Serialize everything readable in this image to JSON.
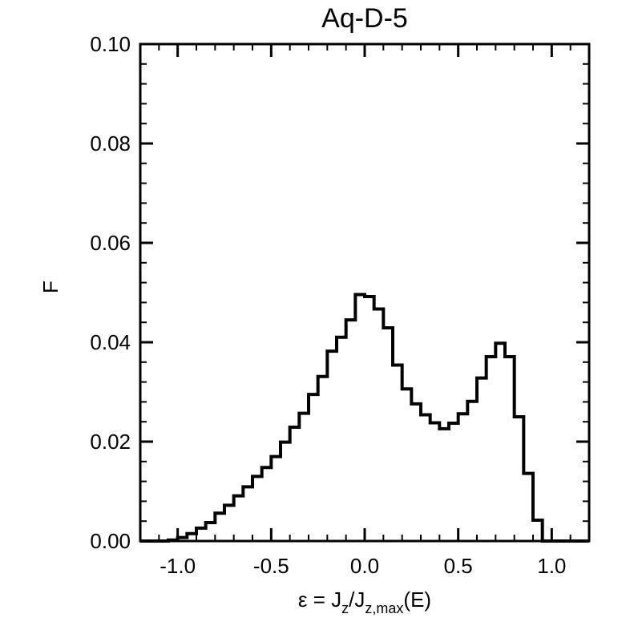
{
  "chart_data": {
    "type": "line",
    "title": "Aq-D-5",
    "ylabel": "F",
    "xlabel": {
      "prefix": "ε =  J",
      "sub1": "z",
      "mid": "/J",
      "sub2": "z,max",
      "suffix": "(E)"
    },
    "xlim": [
      -1.2,
      1.2
    ],
    "ylim": [
      0.0,
      0.1
    ],
    "xticks": [
      -1.0,
      -0.5,
      0.0,
      0.5,
      1.0
    ],
    "xtick_labels": [
      "-1.0",
      "-0.5",
      "0.0",
      "0.5",
      "1.0"
    ],
    "yticks": [
      0.0,
      0.02,
      0.04,
      0.06,
      0.08,
      0.1
    ],
    "ytick_labels": [
      "0.00",
      "0.02",
      "0.04",
      "0.06",
      "0.08",
      "0.10"
    ],
    "grid": false,
    "series": [
      {
        "style": "steps",
        "bin_width": 0.05,
        "x": [
          -1.2,
          -1.15,
          -1.1,
          -1.05,
          -1.0,
          -0.95,
          -0.9,
          -0.85,
          -0.8,
          -0.75,
          -0.7,
          -0.65,
          -0.6,
          -0.55,
          -0.5,
          -0.45,
          -0.4,
          -0.35,
          -0.3,
          -0.25,
          -0.2,
          -0.15,
          -0.1,
          -0.05,
          0.0,
          0.05,
          0.1,
          0.15,
          0.2,
          0.25,
          0.3,
          0.35,
          0.4,
          0.45,
          0.5,
          0.55,
          0.6,
          0.65,
          0.7,
          0.75,
          0.8,
          0.85,
          0.9,
          0.95,
          1.0,
          1.05,
          1.1,
          1.15
        ],
        "y": [
          0.0,
          0.0,
          0.0,
          0.0002,
          0.0007,
          0.0015,
          0.0026,
          0.0037,
          0.0056,
          0.0072,
          0.0091,
          0.0109,
          0.013,
          0.0148,
          0.017,
          0.0199,
          0.0229,
          0.0257,
          0.0295,
          0.0331,
          0.0382,
          0.041,
          0.0445,
          0.0496,
          0.0492,
          0.0467,
          0.0429,
          0.0354,
          0.0306,
          0.0276,
          0.0254,
          0.0238,
          0.0226,
          0.0237,
          0.0256,
          0.0281,
          0.0328,
          0.0371,
          0.0398,
          0.0371,
          0.025,
          0.0136,
          0.0042,
          0.0,
          0.0,
          0.0,
          0.0,
          0.0
        ]
      }
    ]
  }
}
